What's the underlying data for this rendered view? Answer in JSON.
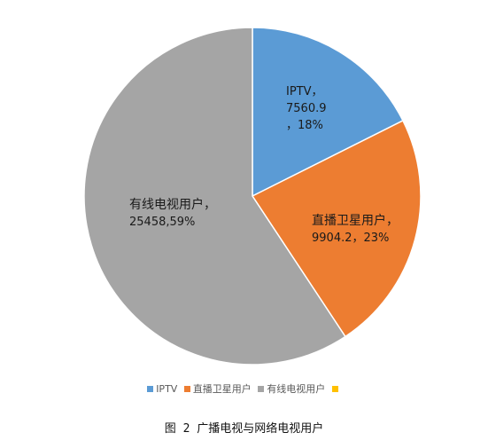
{
  "chart_data": {
    "type": "pie",
    "categories": [
      "IPTV",
      "直播卫星用户",
      "有线电视用户",
      ""
    ],
    "values": [
      7560.9,
      9904.2,
      25458,
      0
    ],
    "percent_labels": [
      "18%",
      "23%",
      "59%",
      ""
    ],
    "data_labels": [
      [
        "IPTV，",
        "7560.9",
        "，18%"
      ],
      [
        "直播卫星用户，",
        "9904.2，23%"
      ],
      [
        "有线电视用户，",
        "25458,59%"
      ]
    ],
    "colors": [
      "#5b9bd5",
      "#ed7d31",
      "#a5a5a5",
      "#ffc000"
    ],
    "legend_position": "bottom",
    "legend": [
      "IPTV",
      "直播卫星用户",
      "有线电视用户",
      ""
    ]
  },
  "caption": "图 2 广播电视与网络电视用户"
}
